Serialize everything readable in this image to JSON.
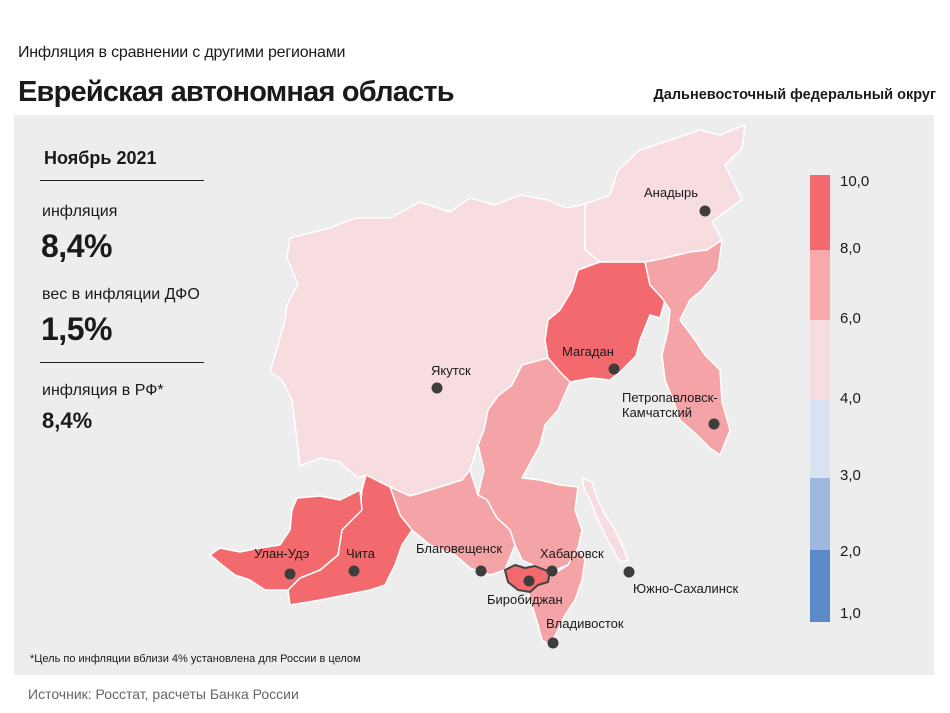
{
  "header": {
    "subtitle": "Инфляция в сравнении с другими регионами",
    "title": "Еврейская автономная область",
    "district": "Дальневосточный федеральный округ"
  },
  "stats": {
    "period": "Ноябрь 2021",
    "inflation_label": "инфляция",
    "inflation_value": "8,4%",
    "weight_label": "вес в инфляции ДФО",
    "weight_value": "1,5%",
    "rf_label": "инфляция в РФ*",
    "rf_value": "8,4%"
  },
  "legend": {
    "labels": [
      "10,0",
      "8,0",
      "6,0",
      "4,0",
      "3,0",
      "2,0",
      "1,0"
    ],
    "colors": [
      "#f26a6d",
      "#f7a9ab",
      "#f7dde0",
      "#d9e3f3",
      "#9fb9de",
      "#5b8bc9"
    ]
  },
  "map": {
    "colors": {
      "level_8_10": "#f26a6d",
      "level_6_8": "#f4a3a6",
      "level_4_6": "#f7dce0",
      "border": "#ffffff",
      "dot": "#3d3d3d"
    },
    "regions": [
      {
        "name": "Чукотский АО",
        "level": "4–6"
      },
      {
        "name": "Республика Саха (Якутия)",
        "level": "4–6"
      },
      {
        "name": "Магаданская область",
        "level": "8–10"
      },
      {
        "name": "Камчатский край",
        "level": "6–8"
      },
      {
        "name": "Хабаровский край",
        "level": "6–8"
      },
      {
        "name": "Амурская область",
        "level": "6–8"
      },
      {
        "name": "Забайкальский край",
        "level": "8–10"
      },
      {
        "name": "Республика Бурятия",
        "level": "8–10"
      },
      {
        "name": "Сахалинская область",
        "level": "4–6"
      },
      {
        "name": "Приморский край",
        "level": "6–8"
      },
      {
        "name": "Еврейская автономная область",
        "level": "8–10"
      }
    ],
    "cities": {
      "anadyr": "Анадырь",
      "magadan": "Магадан",
      "yakutsk": "Якутск",
      "petropavlovsk_1": "Петропавловск-",
      "petropavlovsk_2": "Камчатский",
      "ulan_ude": "Улан-Удэ",
      "chita": "Чита",
      "blagoveshchensk": "Благовещенск",
      "khabarovsk": "Хабаровск",
      "birobidzhan": "Биробиджан",
      "yuzhno": "Южно-Сахалинск",
      "vladivostok": "Владивосток"
    }
  },
  "footnote": "*Цель по инфляции вблизи 4% установлена для России в целом",
  "source": "Источник: Росстат, расчеты Банка России"
}
